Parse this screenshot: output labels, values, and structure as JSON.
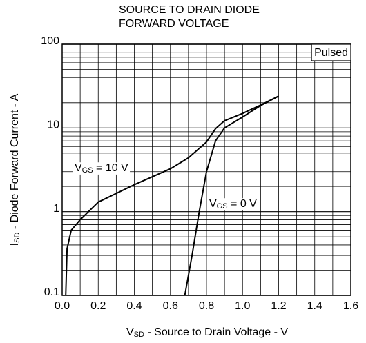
{
  "chart_data": {
    "type": "line",
    "title": [
      "SOURCE TO DRAIN DIODE",
      "FORWARD VOLTAGE"
    ],
    "xlabel": {
      "main": "V",
      "sub": "SD",
      "rest": " - Source to Drain Voltage - V"
    },
    "ylabel": {
      "main": "I",
      "sub": "SD",
      "rest": "  -  Diode Forward Current - A"
    },
    "annotations": {
      "pulsed": "Pulsed"
    },
    "xlim": [
      0,
      1.6
    ],
    "xticks": [
      {
        "value": 0,
        "label": "0.0"
      },
      0.2,
      0.4,
      0.6,
      0.8,
      {
        "value": 1,
        "label": "1.0"
      },
      1.2,
      1.4,
      1.6
    ],
    "ylim": [
      0.1,
      100
    ],
    "yticks": [
      0.1,
      1,
      10,
      100
    ],
    "yscale": "log",
    "grid": true,
    "x_minor_grid": true,
    "log_minor_grid": true,
    "series": [
      {
        "name": {
          "main": "V",
          "sub": "GS",
          "rest": " = 10 V"
        },
        "color": "#000000",
        "x": [
          0.02,
          0.027,
          0.05,
          0.1,
          0.2,
          0.4,
          0.6,
          0.7,
          0.8,
          0.85,
          0.9,
          1.0,
          1.1,
          1.2
        ],
        "values": [
          0.1,
          0.36,
          0.6,
          0.8,
          1.3,
          2.1,
          3.25,
          4.4,
          6.8,
          9.8,
          12.2,
          14.9,
          18.8,
          24
        ]
      },
      {
        "name": {
          "main": "V",
          "sub": "GS",
          "rest": " = 0 V"
        },
        "color": "#000000",
        "x": [
          0.68,
          0.72,
          0.76,
          0.8,
          0.85,
          0.9,
          1.0,
          1.1,
          1.2
        ],
        "values": [
          0.1,
          0.3,
          1,
          3,
          7,
          10,
          13.5,
          18.5,
          24
        ]
      }
    ]
  }
}
